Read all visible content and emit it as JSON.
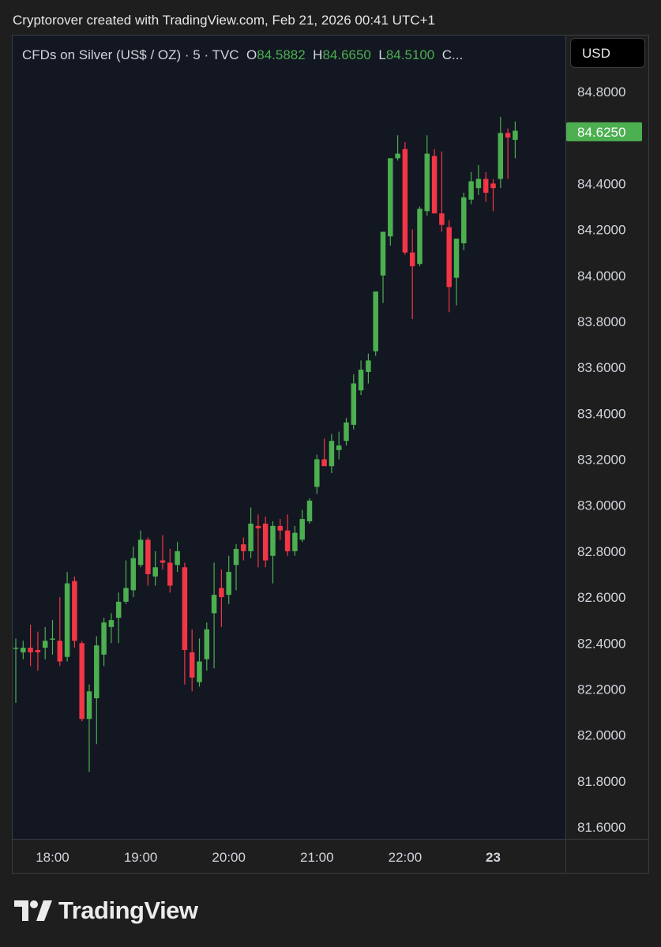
{
  "header": {
    "credit": "Cryptorover created with TradingView.com, Feb 21, 2026 00:41 UTC+1"
  },
  "legend": {
    "symbol": "CFDs on Silver (US$ / OZ) · 5 · TVC",
    "open_label": "O",
    "open_value": "84.5882",
    "high_label": "H",
    "high_value": "84.6650",
    "low_label": "L",
    "low_value": "84.5100",
    "close_label": "C..."
  },
  "currency_button": {
    "label": "USD"
  },
  "last_price": {
    "label": "84.6250",
    "value": 84.625,
    "color": "#4caf50"
  },
  "brand": {
    "name": "TradingView"
  },
  "colors": {
    "up": "#4caf50",
    "down": "#f23645",
    "background": "#131722"
  },
  "chart_data": {
    "type": "candlestick",
    "y_axis": {
      "range": [
        81.6,
        84.8
      ],
      "ticks": [
        "84.8000",
        "84.4000",
        "84.2000",
        "84.0000",
        "83.8000",
        "83.6000",
        "83.4000",
        "83.2000",
        "83.0000",
        "82.8000",
        "82.6000",
        "82.4000",
        "82.2000",
        "82.0000",
        "81.8000",
        "81.6000"
      ]
    },
    "x_axis": {
      "interval_minutes": 5,
      "labels": [
        {
          "text": "18:00",
          "index": 5,
          "bold": false
        },
        {
          "text": "19:00",
          "index": 17,
          "bold": false
        },
        {
          "text": "20:00",
          "index": 29,
          "bold": false
        },
        {
          "text": "21:00",
          "index": 41,
          "bold": false
        },
        {
          "text": "22:00",
          "index": 53,
          "bold": false
        },
        {
          "text": "23",
          "index": 65,
          "bold": true
        }
      ]
    },
    "candles": [
      {
        "o": 82.38,
        "h": 82.42,
        "l": 82.14,
        "c": 82.38
      },
      {
        "o": 82.36,
        "h": 82.41,
        "l": 82.33,
        "c": 82.38
      },
      {
        "o": 82.38,
        "h": 82.48,
        "l": 82.3,
        "c": 82.36
      },
      {
        "o": 82.37,
        "h": 82.45,
        "l": 82.28,
        "c": 82.36
      },
      {
        "o": 82.38,
        "h": 82.47,
        "l": 82.33,
        "c": 82.41
      },
      {
        "o": 82.42,
        "h": 82.5,
        "l": 82.35,
        "c": 82.42
      },
      {
        "o": 82.41,
        "h": 82.6,
        "l": 82.3,
        "c": 82.32
      },
      {
        "o": 82.34,
        "h": 82.71,
        "l": 82.32,
        "c": 82.66
      },
      {
        "o": 82.67,
        "h": 82.69,
        "l": 82.38,
        "c": 82.41
      },
      {
        "o": 82.4,
        "h": 82.41,
        "l": 82.06,
        "c": 82.07
      },
      {
        "o": 82.07,
        "h": 82.22,
        "l": 81.84,
        "c": 82.19
      },
      {
        "o": 82.16,
        "h": 82.43,
        "l": 81.96,
        "c": 82.39
      },
      {
        "o": 82.35,
        "h": 82.51,
        "l": 82.3,
        "c": 82.49
      },
      {
        "o": 82.47,
        "h": 82.53,
        "l": 82.4,
        "c": 82.5
      },
      {
        "o": 82.51,
        "h": 82.62,
        "l": 82.4,
        "c": 82.58
      },
      {
        "o": 82.58,
        "h": 82.76,
        "l": 82.57,
        "c": 82.64
      },
      {
        "o": 82.63,
        "h": 82.82,
        "l": 82.6,
        "c": 82.77
      },
      {
        "o": 82.74,
        "h": 82.89,
        "l": 82.73,
        "c": 82.85
      },
      {
        "o": 82.85,
        "h": 82.86,
        "l": 82.65,
        "c": 82.7
      },
      {
        "o": 82.69,
        "h": 82.8,
        "l": 82.65,
        "c": 82.73
      },
      {
        "o": 82.76,
        "h": 82.87,
        "l": 82.72,
        "c": 82.75
      },
      {
        "o": 82.75,
        "h": 82.81,
        "l": 82.62,
        "c": 82.65
      },
      {
        "o": 82.74,
        "h": 82.84,
        "l": 82.71,
        "c": 82.8
      },
      {
        "o": 82.73,
        "h": 82.75,
        "l": 82.22,
        "c": 82.37
      },
      {
        "o": 82.36,
        "h": 82.46,
        "l": 82.19,
        "c": 82.25
      },
      {
        "o": 82.23,
        "h": 82.42,
        "l": 82.21,
        "c": 82.32
      },
      {
        "o": 82.33,
        "h": 82.49,
        "l": 82.28,
        "c": 82.46
      },
      {
        "o": 82.53,
        "h": 82.75,
        "l": 82.29,
        "c": 82.61
      },
      {
        "o": 82.64,
        "h": 82.72,
        "l": 82.47,
        "c": 82.6
      },
      {
        "o": 82.61,
        "h": 82.78,
        "l": 82.57,
        "c": 82.71
      },
      {
        "o": 82.74,
        "h": 82.83,
        "l": 82.63,
        "c": 82.81
      },
      {
        "o": 82.83,
        "h": 82.86,
        "l": 82.76,
        "c": 82.8
      },
      {
        "o": 82.8,
        "h": 82.99,
        "l": 82.77,
        "c": 82.92
      },
      {
        "o": 82.91,
        "h": 82.96,
        "l": 82.73,
        "c": 82.9
      },
      {
        "o": 82.92,
        "h": 82.95,
        "l": 82.73,
        "c": 82.76
      },
      {
        "o": 82.78,
        "h": 82.93,
        "l": 82.66,
        "c": 82.91
      },
      {
        "o": 82.91,
        "h": 82.94,
        "l": 82.85,
        "c": 82.89
      },
      {
        "o": 82.89,
        "h": 82.96,
        "l": 82.78,
        "c": 82.8
      },
      {
        "o": 82.8,
        "h": 82.91,
        "l": 82.78,
        "c": 82.88
      },
      {
        "o": 82.85,
        "h": 82.98,
        "l": 82.84,
        "c": 82.94
      },
      {
        "o": 82.93,
        "h": 83.03,
        "l": 82.92,
        "c": 83.02
      },
      {
        "o": 83.08,
        "h": 83.22,
        "l": 83.05,
        "c": 83.2
      },
      {
        "o": 83.2,
        "h": 83.29,
        "l": 83.17,
        "c": 83.17
      },
      {
        "o": 83.17,
        "h": 83.31,
        "l": 83.14,
        "c": 83.28
      },
      {
        "o": 83.24,
        "h": 83.32,
        "l": 83.2,
        "c": 83.26
      },
      {
        "o": 83.28,
        "h": 83.38,
        "l": 83.26,
        "c": 83.36
      },
      {
        "o": 83.35,
        "h": 83.57,
        "l": 83.33,
        "c": 83.53
      },
      {
        "o": 83.5,
        "h": 83.63,
        "l": 83.48,
        "c": 83.59
      },
      {
        "o": 83.58,
        "h": 83.66,
        "l": 83.53,
        "c": 83.63
      },
      {
        "o": 83.67,
        "h": 83.92,
        "l": 83.65,
        "c": 83.93
      },
      {
        "o": 84.0,
        "h": 84.19,
        "l": 83.88,
        "c": 84.19
      },
      {
        "o": 84.17,
        "h": 84.51,
        "l": 84.13,
        "c": 84.51
      },
      {
        "o": 84.51,
        "h": 84.61,
        "l": 84.5,
        "c": 84.53
      },
      {
        "o": 84.55,
        "h": 84.58,
        "l": 84.09,
        "c": 84.1
      },
      {
        "o": 84.1,
        "h": 84.2,
        "l": 83.81,
        "c": 84.04
      },
      {
        "o": 84.05,
        "h": 84.3,
        "l": 84.04,
        "c": 84.29
      },
      {
        "o": 84.28,
        "h": 84.61,
        "l": 84.26,
        "c": 84.53
      },
      {
        "o": 84.52,
        "h": 84.55,
        "l": 84.27,
        "c": 84.27
      },
      {
        "o": 84.27,
        "h": 84.54,
        "l": 84.19,
        "c": 84.22
      },
      {
        "o": 84.21,
        "h": 84.24,
        "l": 83.84,
        "c": 83.95
      },
      {
        "o": 83.99,
        "h": 84.15,
        "l": 83.87,
        "c": 84.16
      },
      {
        "o": 84.14,
        "h": 84.36,
        "l": 84.11,
        "c": 84.34
      },
      {
        "o": 84.33,
        "h": 84.45,
        "l": 84.31,
        "c": 84.41
      },
      {
        "o": 84.38,
        "h": 84.48,
        "l": 84.35,
        "c": 84.42
      },
      {
        "o": 84.42,
        "h": 84.45,
        "l": 84.32,
        "c": 84.36
      },
      {
        "o": 84.4,
        "h": 84.42,
        "l": 84.28,
        "c": 84.38
      },
      {
        "o": 84.42,
        "h": 84.69,
        "l": 84.38,
        "c": 84.62
      },
      {
        "o": 84.62,
        "h": 84.64,
        "l": 84.42,
        "c": 84.6
      },
      {
        "o": 84.59,
        "h": 84.67,
        "l": 84.51,
        "c": 84.63
      }
    ]
  }
}
